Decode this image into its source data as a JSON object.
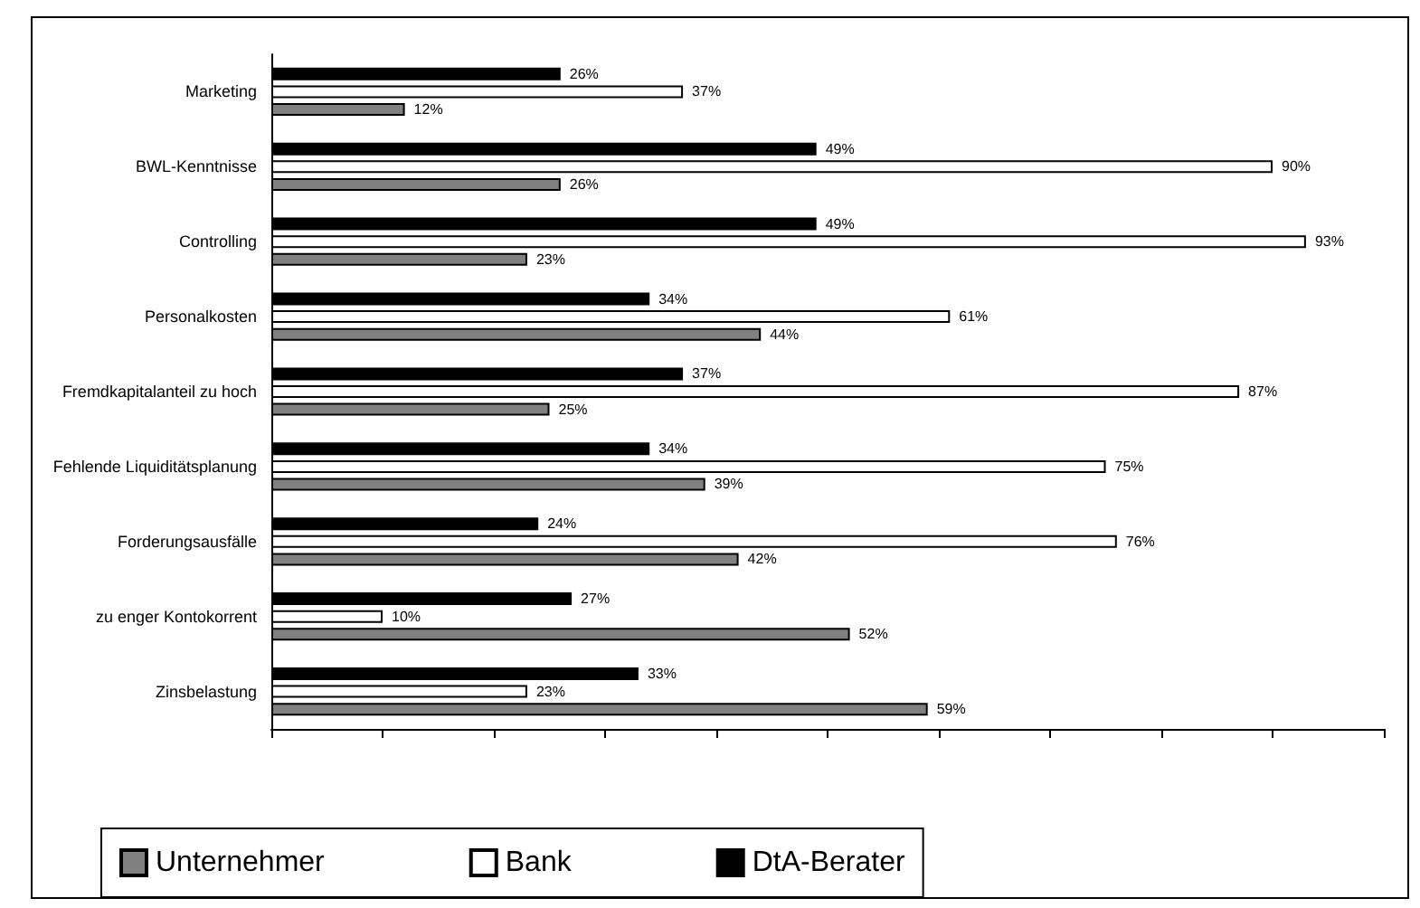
{
  "chart_data": {
    "type": "bar",
    "orientation": "horizontal",
    "categories": [
      "Marketing",
      "BWL-Kenntnisse",
      "Controlling",
      "Personalkosten",
      "Fremdkapitalanteil zu hoch",
      "Fehlende Liquiditätsplanung",
      "Forderungsausfälle",
      "zu enger Kontokorrent",
      "Zinsbelastung"
    ],
    "series": [
      {
        "name": "Unternehmer",
        "color": "#808080",
        "values": [
          12,
          26,
          23,
          44,
          25,
          39,
          42,
          52,
          59
        ],
        "value_labels": [
          "12%",
          "26%",
          "23%",
          "44%",
          "25%",
          "39%",
          "42%",
          "52%",
          "59%"
        ]
      },
      {
        "name": "Bank",
        "color": "#ffffff",
        "values": [
          37,
          90,
          93,
          61,
          87,
          75,
          76,
          10,
          23
        ],
        "value_labels": [
          "37%",
          "90%",
          "93%",
          "61%",
          "87%",
          "75%",
          "76%",
          "10%",
          "23%"
        ]
      },
      {
        "name": "DtA-Berater",
        "color": "#000000",
        "values": [
          26,
          49,
          49,
          34,
          37,
          34,
          24,
          27,
          33
        ],
        "value_labels": [
          "26%",
          "49%",
          "49%",
          "34%",
          "37%",
          "34%",
          "24%",
          "27%",
          "33%"
        ]
      }
    ],
    "xlim": [
      0,
      100
    ],
    "xticks": [
      {
        "value": 0,
        "label": null
      },
      {
        "value": 10,
        "label": null
      },
      {
        "value": 20,
        "label": null
      },
      {
        "value": 30,
        "label": null
      },
      {
        "value": 40,
        "label": null
      },
      {
        "value": 50,
        "label": null
      },
      {
        "value": 60,
        "label": null
      },
      {
        "value": 70,
        "label": null
      },
      {
        "value": 80,
        "label": null
      },
      {
        "value": 90,
        "label": null
      },
      {
        "value": 100,
        "label": null
      }
    ],
    "tick_labels": "y",
    "grid": false,
    "legend": "bottom"
  }
}
